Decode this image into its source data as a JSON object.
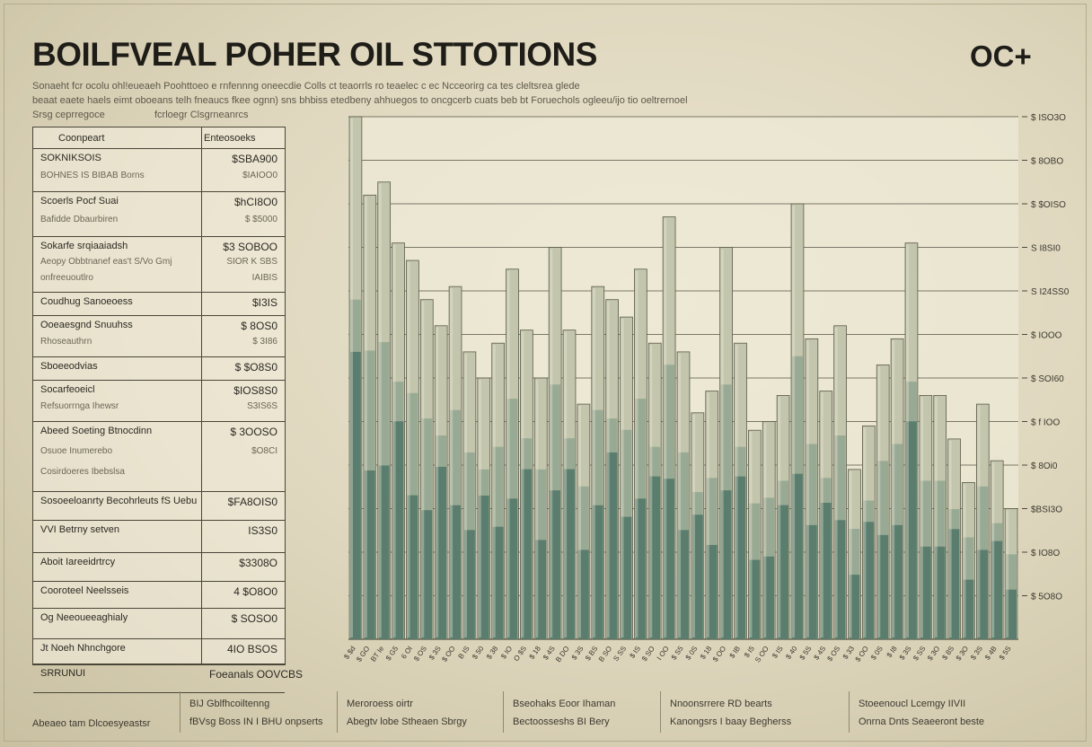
{
  "header": {
    "title": "BOILFVEAL POHER OIL STTOTIONS",
    "logo_text": "OC+",
    "subtitle_lines": [
      "Sonaeht fcr ocolu ohl!eueaeh Poohttoeo e rnfennng oneecdie Colls ct teaorrls ro teaelec c ec Ncceorirg ca tes cleltsrea glede",
      "beaat eaete haels eimt oboeans telh fneaucs fkee ognn) sns bhbiss etedbeny ahhuegos to oncgcerb cuats beb bt Foruechols ogleeu/ijo tio oeltrernoel",
      "Srsg ceprregoce",
      "fcrloegr Clsgrneanrcs"
    ]
  },
  "table": {
    "header": {
      "col1": "Coonpeart",
      "col2": "Enteosoeks"
    },
    "rows": [
      {
        "names": [
          "SOKNIKSOIS",
          "BOHNES IS BIBAB Borns"
        ],
        "values": [
          "$SBA900",
          "$IAIOO0"
        ]
      },
      {
        "names": [
          "Scoerls Pocf Suai",
          "Bafidde Dbaurbiren"
        ],
        "values": [
          "$hCI8O0",
          "$ $5000"
        ]
      },
      {
        "names": [
          "Sokarfe srqiaaiadsh",
          "Aeopy Obbtnanef eas't S/Vo Gmj",
          "onfreeuoutlro"
        ],
        "values": [
          "$3 SOBOO",
          "SIOR K SBS",
          "IAIBIS"
        ]
      },
      {
        "names": [
          "Coudhug Sanoeoess"
        ],
        "values": [
          "$I3IS"
        ]
      },
      {
        "names": [
          "Ooeaesgnd Snuuhss",
          "Rhoseauthrn"
        ],
        "values": [
          "$ 8OS0",
          "$ 3I86"
        ]
      },
      {
        "names": [
          "Sboeeodvias"
        ],
        "values": [
          "$ $O8S0"
        ]
      },
      {
        "names": [
          "Socarfeoeicl",
          "Refsuorrnga Ihewsr"
        ],
        "values": [
          "$IOS8S0",
          "S3IS6S"
        ]
      },
      {
        "names": [
          "Abeed Soeting Btnocdinn",
          "Osuoe Inumerebo",
          "Cosirdoeres Ibebslsa"
        ],
        "values": [
          "$ 3OOSO",
          "$O8CI",
          ""
        ]
      },
      {
        "names": [
          "Sosoeeloanrty Becohrleuts fS Uebu"
        ],
        "values": [
          "$FA8OIS0"
        ]
      },
      {
        "names": [
          "VVI Betrny setven"
        ],
        "values": [
          "IS3S0"
        ]
      },
      {
        "names": [
          "Aboit Iareeidrtrcy"
        ],
        "values": [
          "$3308O"
        ]
      },
      {
        "names": [
          "Cooroteel Neelsseis"
        ],
        "values": [
          "4 $O8O0"
        ]
      },
      {
        "names": [
          "Og Neeoueeaghialy"
        ],
        "values": [
          "$ SOSO0"
        ]
      },
      {
        "names": [
          "Jt Noeh Nhnchgore"
        ],
        "values": [
          "4IO BSOS"
        ]
      },
      {
        "names": [
          "SRRUNUI"
        ],
        "values": [
          "Foeanals OOVCBS"
        ]
      }
    ]
  },
  "chart_data": {
    "type": "bar",
    "title": "",
    "xlabel": "",
    "ylabel": "",
    "ylim": [
      0,
      12
    ],
    "grid": true,
    "legend": "none",
    "ytick_labels": [
      "$ 5O8O",
      "$ IO8O",
      "$BSI3O",
      "$ 8Oi0",
      "$ f IOO",
      "$ SOI60",
      "$ IOOO",
      "S I24SS0",
      "S I8SI0",
      "$ $OISO",
      "$ 8OBO",
      "$ ISO3O"
    ],
    "categories": [
      "$ $d",
      "$ GO",
      "BT Ie",
      "$ G5",
      "6 OI",
      "$ OS",
      "$ 3S",
      "$ OO",
      "B IS",
      "$ 50",
      "$ 38",
      "$ IO",
      "O $S",
      "$ 18",
      "$ 4S",
      "B DO",
      "$ 3S",
      "$ BS",
      "B SO",
      "S SS",
      "$ IS",
      "$ SO",
      "I OO",
      "$ S5",
      "$ 0S",
      "$ 18",
      "$ OO",
      "$ IB",
      "$ I5",
      "S OO",
      "$ IS",
      "$ 40",
      "$ 5S",
      "$ 4S",
      "$ OS",
      "$ 33",
      "$ OO",
      "$ 0S",
      "$ I8",
      "$ 3S",
      "$ SS",
      "$ 3O",
      "$ 8S",
      "$ 3O",
      "$ 3S",
      "$ 4B",
      "$ 5S"
    ],
    "values": [
      12.0,
      10.2,
      10.5,
      9.1,
      8.7,
      7.8,
      7.2,
      8.1,
      6.6,
      6.0,
      6.8,
      8.5,
      7.1,
      6.0,
      9.0,
      7.1,
      5.4,
      8.1,
      7.8,
      7.4,
      8.5,
      6.8,
      9.7,
      6.6,
      5.2,
      5.7,
      9.0,
      6.8,
      4.8,
      5.0,
      5.6,
      10.0,
      6.9,
      5.7,
      7.2,
      3.9,
      4.9,
      6.3,
      6.9,
      9.1,
      5.6,
      5.6,
      4.6,
      3.6,
      5.4,
      4.1,
      3.0
    ],
    "series_colors": {
      "light": "#c3c6ac",
      "mid": "#8ba08c",
      "dark": "#4f7567"
    }
  },
  "footer": {
    "left_label": "Abeaeo tam Dlcoesyeastsr",
    "items": [
      {
        "line1": "BIJ Gblfhcoiltenng",
        "line2": "fBVsg Boss IN I BHU onpserts"
      },
      {
        "line1": "Meroroess oirtr",
        "line2": "Abegtv lobe Stheaen Sbrgy"
      },
      {
        "line1": "Bseohaks Eoor Ihaman",
        "line2": "Bectoosseshs BI Bery"
      },
      {
        "line1": "Nnoonsrrere RD bearts",
        "line2": "Kanongsrs I baay Begherss"
      },
      {
        "line1": "Stoeenoucl Lcemgy IIVII",
        "line2": "Onrna Dnts Seaeeront beste"
      }
    ]
  }
}
